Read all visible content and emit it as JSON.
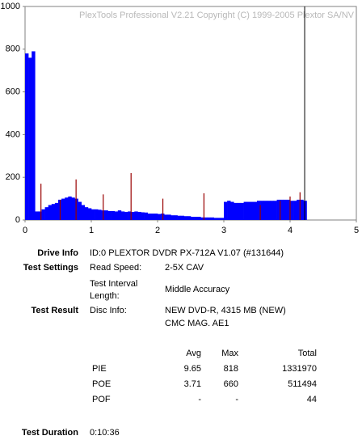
{
  "chart_data": {
    "type": "bar",
    "title": "PlexTools Professional V2.21 Copyright (C) 1999-2005 Plextor SA/NV",
    "xlim": [
      0,
      5
    ],
    "xticks": [
      0,
      1,
      2,
      3,
      4,
      5
    ],
    "ylim": [
      0,
      1000
    ],
    "yticks": [
      0,
      200,
      400,
      600,
      800,
      1000
    ],
    "grid": false,
    "series": [
      {
        "name": "PIE",
        "color": "#0000ff",
        "x": [
          0.0,
          0.05,
          0.1,
          0.15,
          0.2,
          0.25,
          0.3,
          0.35,
          0.4,
          0.45,
          0.5,
          0.55,
          0.6,
          0.65,
          0.7,
          0.75,
          0.8,
          0.85,
          0.9,
          0.95,
          1.0,
          1.05,
          1.1,
          1.15,
          1.2,
          1.25,
          1.3,
          1.35,
          1.4,
          1.45,
          1.5,
          1.55,
          1.6,
          1.65,
          1.7,
          1.75,
          1.8,
          1.85,
          1.9,
          1.95,
          2.0,
          2.05,
          2.1,
          2.15,
          2.2,
          2.25,
          2.3,
          2.35,
          2.4,
          2.45,
          2.5,
          2.55,
          2.6,
          2.65,
          2.7,
          2.75,
          2.8,
          2.85,
          2.9,
          2.95,
          3.0,
          3.05,
          3.1,
          3.15,
          3.2,
          3.25,
          3.3,
          3.35,
          3.4,
          3.45,
          3.5,
          3.55,
          3.6,
          3.65,
          3.7,
          3.75,
          3.8,
          3.85,
          3.9,
          3.95,
          4.0,
          4.05,
          4.1,
          4.15,
          4.2
        ],
        "values": [
          780,
          760,
          790,
          40,
          40,
          50,
          60,
          70,
          75,
          80,
          95,
          100,
          105,
          110,
          105,
          100,
          85,
          70,
          60,
          55,
          50,
          50,
          48,
          45,
          45,
          42,
          42,
          40,
          45,
          40,
          38,
          40,
          38,
          40,
          38,
          36,
          35,
          30,
          30,
          30,
          28,
          30,
          25,
          25,
          22,
          22,
          20,
          20,
          18,
          18,
          15,
          15,
          15,
          12,
          12,
          12,
          12,
          10,
          10,
          10,
          85,
          90,
          85,
          80,
          80,
          80,
          85,
          85,
          85,
          85,
          90,
          90,
          90,
          90,
          90,
          90,
          95,
          95,
          95,
          95,
          90,
          90,
          95,
          95,
          90
        ]
      },
      {
        "name": "POE",
        "color": "#990000",
        "x": [
          0.24,
          0.53,
          0.77,
          1.18,
          1.6,
          2.08,
          2.7,
          3.55,
          3.85,
          4.0,
          4.15
        ],
        "values": [
          170,
          95,
          190,
          120,
          220,
          100,
          125,
          70,
          90,
          110,
          130
        ]
      }
    ],
    "vline": {
      "x": 4.22,
      "color": "#000000"
    }
  },
  "info": {
    "drive": {
      "label": "Drive Info",
      "value": "ID:0 PLEXTOR DVDR PX-712A V1.07 (#131644)"
    },
    "settings": {
      "label": "Test Settings",
      "read_speed": [
        "Read Speed:",
        "2-5X CAV"
      ],
      "interval": [
        "Test Interval",
        "Length:",
        "Middle Accuracy"
      ]
    },
    "result": {
      "label": "Test Result",
      "disc": [
        "Disc Info:",
        "NEW DVD-R, 4315 MB (NEW)",
        "CMC MAG. AE1"
      ]
    },
    "table": {
      "header": [
        "Avg",
        "Max",
        "Total"
      ],
      "rows": [
        [
          "PIE",
          "9.65",
          "818",
          "1331970"
        ],
        [
          "POE",
          "3.71",
          "660",
          "511494"
        ],
        [
          "POF",
          "-",
          "-",
          "44"
        ]
      ]
    },
    "duration": {
      "label": "Test Duration",
      "value": "0:10:36"
    }
  }
}
